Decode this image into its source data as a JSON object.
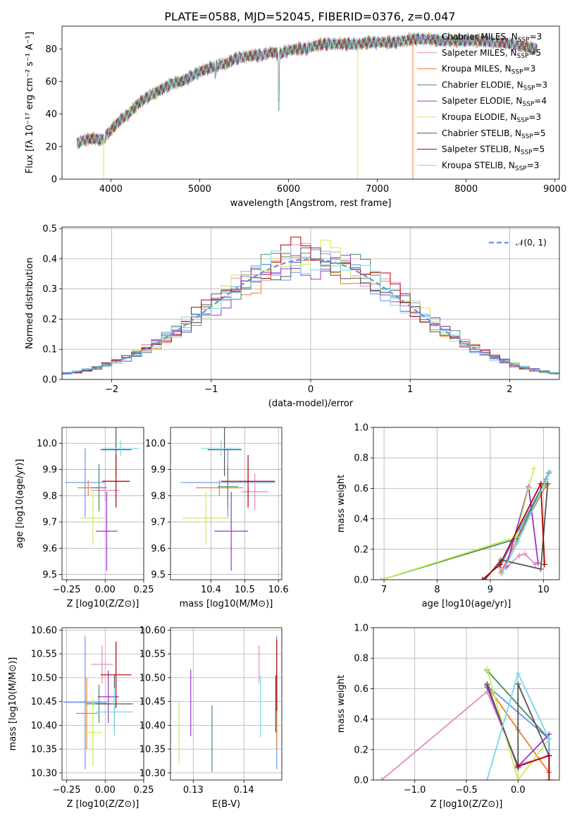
{
  "figure_title": "PLATE=0588, MJD=52045, FIBERID=0376, z=0.047",
  "colors": [
    "#6495ed",
    "#e78ac3",
    "#ee7f2d",
    "#4a8c5c",
    "#9a32cd",
    "#c8ee5a",
    "#555555",
    "#b00000",
    "#76d7ea"
  ],
  "series_names": [
    "Chabrier MILES, N$_{SSP}$=3",
    "Salpeter MILES, N$_{SSP}$=5",
    "Kroupa MILES, N$_{SSP}$=3",
    "Chabrier ELODIE, N$_{SSP}$=3",
    "Salpeter ELODIE, N$_{SSP}$=4",
    "Kroupa ELODIE, N$_{SSP}$=3",
    "Chabrier STELIB, N$_{SSP}$=5",
    "Salpeter STELIB, N$_{SSP}$=5",
    "Kroupa STELIB, N$_{SSP}$=3"
  ],
  "legend": [
    {
      "a": "Chabrier MILES, N",
      "b": "SSP",
      "c": "=3"
    },
    {
      "a": "Salpeter MILES, N",
      "b": "SSP",
      "c": "=5"
    },
    {
      "a": "Kroupa MILES, N",
      "b": "SSP",
      "c": "=3"
    },
    {
      "a": "Chabrier ELODIE, N",
      "b": "SSP",
      "c": "=3"
    },
    {
      "a": "Salpeter ELODIE, N",
      "b": "SSP",
      "c": "=4"
    },
    {
      "a": "Kroupa ELODIE, N",
      "b": "SSP",
      "c": "=3"
    },
    {
      "a": "Chabrier STELIB, N",
      "b": "SSP",
      "c": "=5"
    },
    {
      "a": "Salpeter STELIB, N",
      "b": "SSP",
      "c": "=5"
    },
    {
      "a": "Kroupa STELIB, N",
      "b": "SSP",
      "c": "=3"
    }
  ],
  "normal_label": "𝒩(0, 1)",
  "chart_data": [
    {
      "id": "spectrum",
      "type": "line",
      "xlabel": "wavelength [Angstrom, rest frame]",
      "ylabel": "Flux [fλ 10⁻¹⁷ erg cm⁻² s⁻¹ A⁻¹]",
      "xlim": [
        3450,
        9050
      ],
      "ylim": [
        0,
        94
      ],
      "xticks": [
        4000,
        5000,
        6000,
        7000,
        8000,
        9000
      ],
      "yticks": [
        0,
        20,
        40,
        60,
        80
      ],
      "flux": {
        "x": [
          3620,
          3700,
          3800,
          3900,
          4000,
          4100,
          4200,
          4300,
          4400,
          4500,
          4600,
          4700,
          4800,
          4900,
          5000,
          5100,
          5200,
          5300,
          5400,
          5500,
          5600,
          5700,
          5800,
          5900,
          6000,
          6100,
          6200,
          6300,
          6400,
          6500,
          6600,
          6700,
          6800,
          6900,
          7000,
          7100,
          7200,
          7300,
          7400,
          7500,
          7600,
          7700,
          7800,
          7900,
          8000,
          8100,
          8200,
          8300,
          8400,
          8500,
          8600,
          8700,
          8800
        ],
        "y": [
          22,
          24,
          25,
          24,
          30,
          36,
          40,
          46,
          50,
          53,
          56,
          59,
          60,
          63,
          66,
          68,
          70,
          71,
          74,
          75,
          76,
          76,
          78,
          77,
          79,
          80,
          80,
          82,
          83,
          83,
          83,
          83,
          83,
          84,
          84,
          84,
          84,
          85,
          86,
          86,
          86,
          85,
          85,
          85,
          85,
          85,
          85,
          84,
          84,
          83,
          82,
          81,
          80
        ]
      },
      "dips": [
        [
          3930,
          22
        ],
        [
          5175,
          62
        ],
        [
          5893,
          42
        ],
        [
          6563,
          88
        ]
      ],
      "drops": [
        {
          "x": 3920,
          "series": 5
        },
        {
          "x": 6780,
          "series": 5
        },
        {
          "x": 7400,
          "series": 2
        }
      ]
    },
    {
      "id": "residuals",
      "type": "histogram",
      "xlabel": "(data-model)/error",
      "ylabel": "Normed distribution",
      "xlim": [
        -2.5,
        2.5
      ],
      "ylim": [
        0,
        0.505
      ],
      "xticks": [
        -2,
        -1,
        0,
        1,
        2
      ],
      "xticklabels": [
        "−2",
        "−1",
        "0",
        "1",
        "2"
      ],
      "yticks": [
        0.0,
        0.1,
        0.2,
        0.3,
        0.4,
        0.5
      ],
      "bin_width": 0.1,
      "series_offsets": [
        0.0,
        0.02,
        -0.01,
        0.015,
        -0.02,
        0.01,
        -0.015,
        0.02,
        -0.005
      ]
    },
    {
      "id": "z-age",
      "type": "errorbar",
      "xlabel": "Z [log10(Z/Z⊙)]",
      "ylabel": "age  [log10(age/yr)]",
      "xlim": [
        -0.28,
        0.25
      ],
      "ylim": [
        9.48,
        10.06
      ],
      "xticks": [
        -0.25,
        0.0,
        0.25
      ],
      "xticklabels": [
        "−0.25",
        "0.00",
        "0.25"
      ],
      "yticks": [
        9.5,
        9.6,
        9.7,
        9.8,
        9.9,
        10.0
      ],
      "points": [
        {
          "x": -0.13,
          "y": 9.85,
          "xerr": 0.13,
          "yerr": 0.13,
          "series": 0
        },
        {
          "x": 0.0,
          "y": 9.82,
          "xerr": 0.09,
          "yerr": 0.04,
          "series": 1
        },
        {
          "x": -0.11,
          "y": 9.83,
          "xerr": 0.07,
          "yerr": 0.03,
          "series": 2
        },
        {
          "x": -0.04,
          "y": 9.83,
          "xerr": 0.05,
          "yerr": 0.09,
          "series": 3
        },
        {
          "x": 0.01,
          "y": 9.665,
          "xerr": 0.07,
          "yerr": 0.15,
          "series": 4
        },
        {
          "x": -0.08,
          "y": 9.715,
          "xerr": 0.08,
          "yerr": 0.1,
          "series": 5
        },
        {
          "x": 0.07,
          "y": 9.975,
          "xerr": 0.1,
          "yerr": 0.1,
          "series": 6
        },
        {
          "x": 0.07,
          "y": 9.855,
          "xerr": 0.09,
          "yerr": 0.1,
          "series": 7
        },
        {
          "x": 0.1,
          "y": 9.98,
          "xerr": 0.12,
          "yerr": 0.03,
          "series": 8
        }
      ]
    },
    {
      "id": "mass-age",
      "type": "errorbar",
      "xlabel": "mass [log10(M/M⊙)]",
      "ylabel": "",
      "xlim": [
        10.28,
        10.61
      ],
      "ylim": [
        9.48,
        10.06
      ],
      "xticks": [
        10.4,
        10.5,
        10.6
      ],
      "xticklabels": [
        "10.4",
        "10.5",
        "10.6"
      ],
      "yticks": [
        9.5,
        9.6,
        9.7,
        9.8,
        9.9,
        10.0
      ],
      "points": [
        {
          "x": 10.45,
          "y": 9.85,
          "xerr": 0.14,
          "yerr": 0.13,
          "series": 0
        },
        {
          "x": 10.53,
          "y": 9.815,
          "xerr": 0.04,
          "yerr": 0.07,
          "series": 1
        },
        {
          "x": 10.425,
          "y": 9.83,
          "xerr": 0.07,
          "yerr": 0.03,
          "series": 2
        },
        {
          "x": 10.45,
          "y": 9.835,
          "xerr": 0.03,
          "yerr": 0.08,
          "series": 3
        },
        {
          "x": 10.46,
          "y": 9.665,
          "xerr": 0.05,
          "yerr": 0.15,
          "series": 4
        },
        {
          "x": 10.385,
          "y": 9.715,
          "xerr": 0.07,
          "yerr": 0.1,
          "series": 5
        },
        {
          "x": 10.44,
          "y": 9.975,
          "xerr": 0.05,
          "yerr": 0.1,
          "series": 6
        },
        {
          "x": 10.51,
          "y": 9.855,
          "xerr": 0.08,
          "yerr": 0.1,
          "series": 7
        },
        {
          "x": 10.43,
          "y": 9.98,
          "xerr": 0.06,
          "yerr": 0.03,
          "series": 8
        }
      ]
    },
    {
      "id": "age-weight",
      "type": "line",
      "xlabel": "age  [log10(age/yr)]",
      "ylabel": "mass weight",
      "xlim": [
        6.8,
        10.3
      ],
      "ylim": [
        0,
        1.0
      ],
      "xticks": [
        7,
        8,
        9,
        10
      ],
      "xticklabels": [
        "7",
        "8",
        "9",
        "10"
      ],
      "yticks": [
        0.0,
        0.2,
        0.4,
        0.6,
        0.8,
        1.0
      ],
      "series": [
        {
          "x": [
            9.18,
            9.42,
            10.05
          ],
          "y": [
            0.08,
            0.25,
            0.66
          ]
        },
        {
          "x": [
            9.3,
            9.55,
            9.65,
            9.85
          ],
          "y": [
            0.08,
            0.16,
            0.17,
            0.1
          ]
        },
        {
          "x": [
            9.2,
            9.6,
            10.05
          ],
          "y": [
            0.05,
            0.33,
            0.62
          ]
        },
        {
          "x": [
            6.95,
            9.5,
            10.1
          ],
          "y": [
            0.0,
            0.27,
            0.7
          ]
        },
        {
          "x": [
            9.3,
            9.72,
            9.9
          ],
          "y": [
            0.09,
            0.61,
            0.11
          ]
        },
        {
          "x": [
            6.95,
            9.48,
            9.82
          ],
          "y": [
            0.0,
            0.28,
            0.73
          ]
        },
        {
          "x": [
            8.9,
            9.2,
            9.95,
            10.08
          ],
          "y": [
            0.0,
            0.13,
            0.07,
            0.63
          ]
        },
        {
          "x": [
            8.85,
            9.18,
            9.95,
            10.02
          ],
          "y": [
            0.0,
            0.1,
            0.63,
            0.1
          ]
        },
        {
          "x": [
            9.22,
            9.52,
            10.12
          ],
          "y": [
            0.04,
            0.25,
            0.71
          ]
        }
      ]
    },
    {
      "id": "z-mass",
      "type": "errorbar",
      "xlabel": "Z [log10(Z/Z⊙)]",
      "ylabel": "mass [log10(M/M⊙)]",
      "xlim": [
        -0.28,
        0.25
      ],
      "ylim": [
        10.285,
        10.605
      ],
      "xticks": [
        -0.25,
        0.0,
        0.25
      ],
      "xticklabels": [
        "−0.25",
        "0.00",
        "0.25"
      ],
      "yticks": [
        10.3,
        10.35,
        10.4,
        10.45,
        10.5,
        10.55,
        10.6
      ],
      "points": [
        {
          "x": -0.13,
          "y": 10.448,
          "xerr": 0.14,
          "yerr": 0.14,
          "series": 0
        },
        {
          "x": -0.02,
          "y": 10.528,
          "xerr": 0.07,
          "yerr": 0.04,
          "series": 1
        },
        {
          "x": -0.12,
          "y": 10.425,
          "xerr": 0.07,
          "yerr": 0.075,
          "series": 2
        },
        {
          "x": -0.04,
          "y": 10.445,
          "xerr": 0.08,
          "yerr": 0.04,
          "series": 3
        },
        {
          "x": 0.02,
          "y": 10.46,
          "xerr": 0.07,
          "yerr": 0.055,
          "series": 4
        },
        {
          "x": -0.08,
          "y": 10.385,
          "xerr": 0.06,
          "yerr": 0.07,
          "series": 5
        },
        {
          "x": 0.06,
          "y": 10.445,
          "xerr": 0.12,
          "yerr": 0.06,
          "series": 6
        },
        {
          "x": 0.07,
          "y": 10.506,
          "xerr": 0.1,
          "yerr": 0.07,
          "series": 7
        },
        {
          "x": 0.06,
          "y": 10.428,
          "xerr": 0.12,
          "yerr": 0.05,
          "series": 8
        }
      ]
    },
    {
      "id": "ebv-mass",
      "type": "errorbar",
      "xlabel": "E(B-V)",
      "ylabel": "",
      "xlim": [
        0.1255,
        0.1475
      ],
      "ylim": [
        10.285,
        10.605
      ],
      "xticks": [
        0.13,
        0.14
      ],
      "xticklabels": [
        "0.13",
        "0.14"
      ],
      "yticks": [
        10.3,
        10.35,
        10.4,
        10.45,
        10.5,
        10.55,
        10.6
      ],
      "points": [
        {
          "x": 0.1465,
          "y": 10.448,
          "xerr": 0,
          "yerr": 0.14,
          "series": 0
        },
        {
          "x": 0.143,
          "y": 10.528,
          "xerr": 0,
          "yerr": 0.04,
          "series": 1
        },
        {
          "x": 0.1465,
          "y": 10.425,
          "xerr": 0,
          "yerr": 0.075,
          "series": 2
        },
        {
          "x": 0.1337,
          "y": 10.372,
          "xerr": 0,
          "yerr": 0.07,
          "series": 3
        },
        {
          "x": 0.1295,
          "y": 10.447,
          "xerr": 0,
          "yerr": 0.07,
          "series": 4
        },
        {
          "x": 0.1272,
          "y": 10.385,
          "xerr": 0,
          "yerr": 0.065,
          "series": 5
        },
        {
          "x": 0.1463,
          "y": 10.445,
          "xerr": 0,
          "yerr": 0.06,
          "series": 6
        },
        {
          "x": 0.1465,
          "y": 10.505,
          "xerr": 0,
          "yerr": 0.075,
          "series": 7
        },
        {
          "x": 0.1433,
          "y": 10.44,
          "xerr": 0,
          "yerr": 0.065,
          "series": 8
        }
      ]
    },
    {
      "id": "z-weight",
      "type": "line",
      "xlabel": "Z [log10(Z/Z⊙)]",
      "ylabel": "mass weight",
      "xlim": [
        -1.4,
        0.4
      ],
      "ylim": [
        0,
        1.0
      ],
      "xticks": [
        -1.0,
        -0.5,
        0.0
      ],
      "xticklabels": [
        "−1.0",
        "−0.5",
        "0.0"
      ],
      "yticks": [
        0.0,
        0.2,
        0.4,
        0.6,
        0.8,
        1.0
      ],
      "series": [
        {
          "x": [
            -0.3,
            0.3,
            0.3
          ],
          "y": [
            0.62,
            0.27,
            0.05
          ]
        },
        {
          "x": [
            -1.32,
            -0.3,
            0.0,
            0.3,
            0.3
          ],
          "y": [
            0.0,
            0.58,
            0.1,
            0.16,
            0.05
          ]
        },
        {
          "x": [
            -0.3,
            0.0,
            0.3
          ],
          "y": [
            0.62,
            0.33,
            0.05
          ]
        },
        {
          "x": [
            -0.3,
            0.3
          ],
          "y": [
            0.72,
            0.27
          ]
        },
        {
          "x": [
            -0.3,
            0.0,
            0.3
          ],
          "y": [
            0.61,
            0.09,
            0.3
          ]
        },
        {
          "x": [
            -0.3,
            0.0,
            0.3
          ],
          "y": [
            0.73,
            0.0,
            0.27
          ]
        },
        {
          "x": [
            -0.3,
            0.0,
            0.0,
            0.3,
            0.3
          ],
          "y": [
            0.63,
            0.08,
            0.63,
            0.16,
            0.0
          ]
        },
        {
          "x": [
            0.0,
            0.3,
            0.3
          ],
          "y": [
            0.09,
            0.16,
            0.0
          ]
        },
        {
          "x": [
            -0.3,
            0.0,
            0.3
          ],
          "y": [
            0.0,
            0.7,
            0.27
          ]
        }
      ]
    }
  ]
}
